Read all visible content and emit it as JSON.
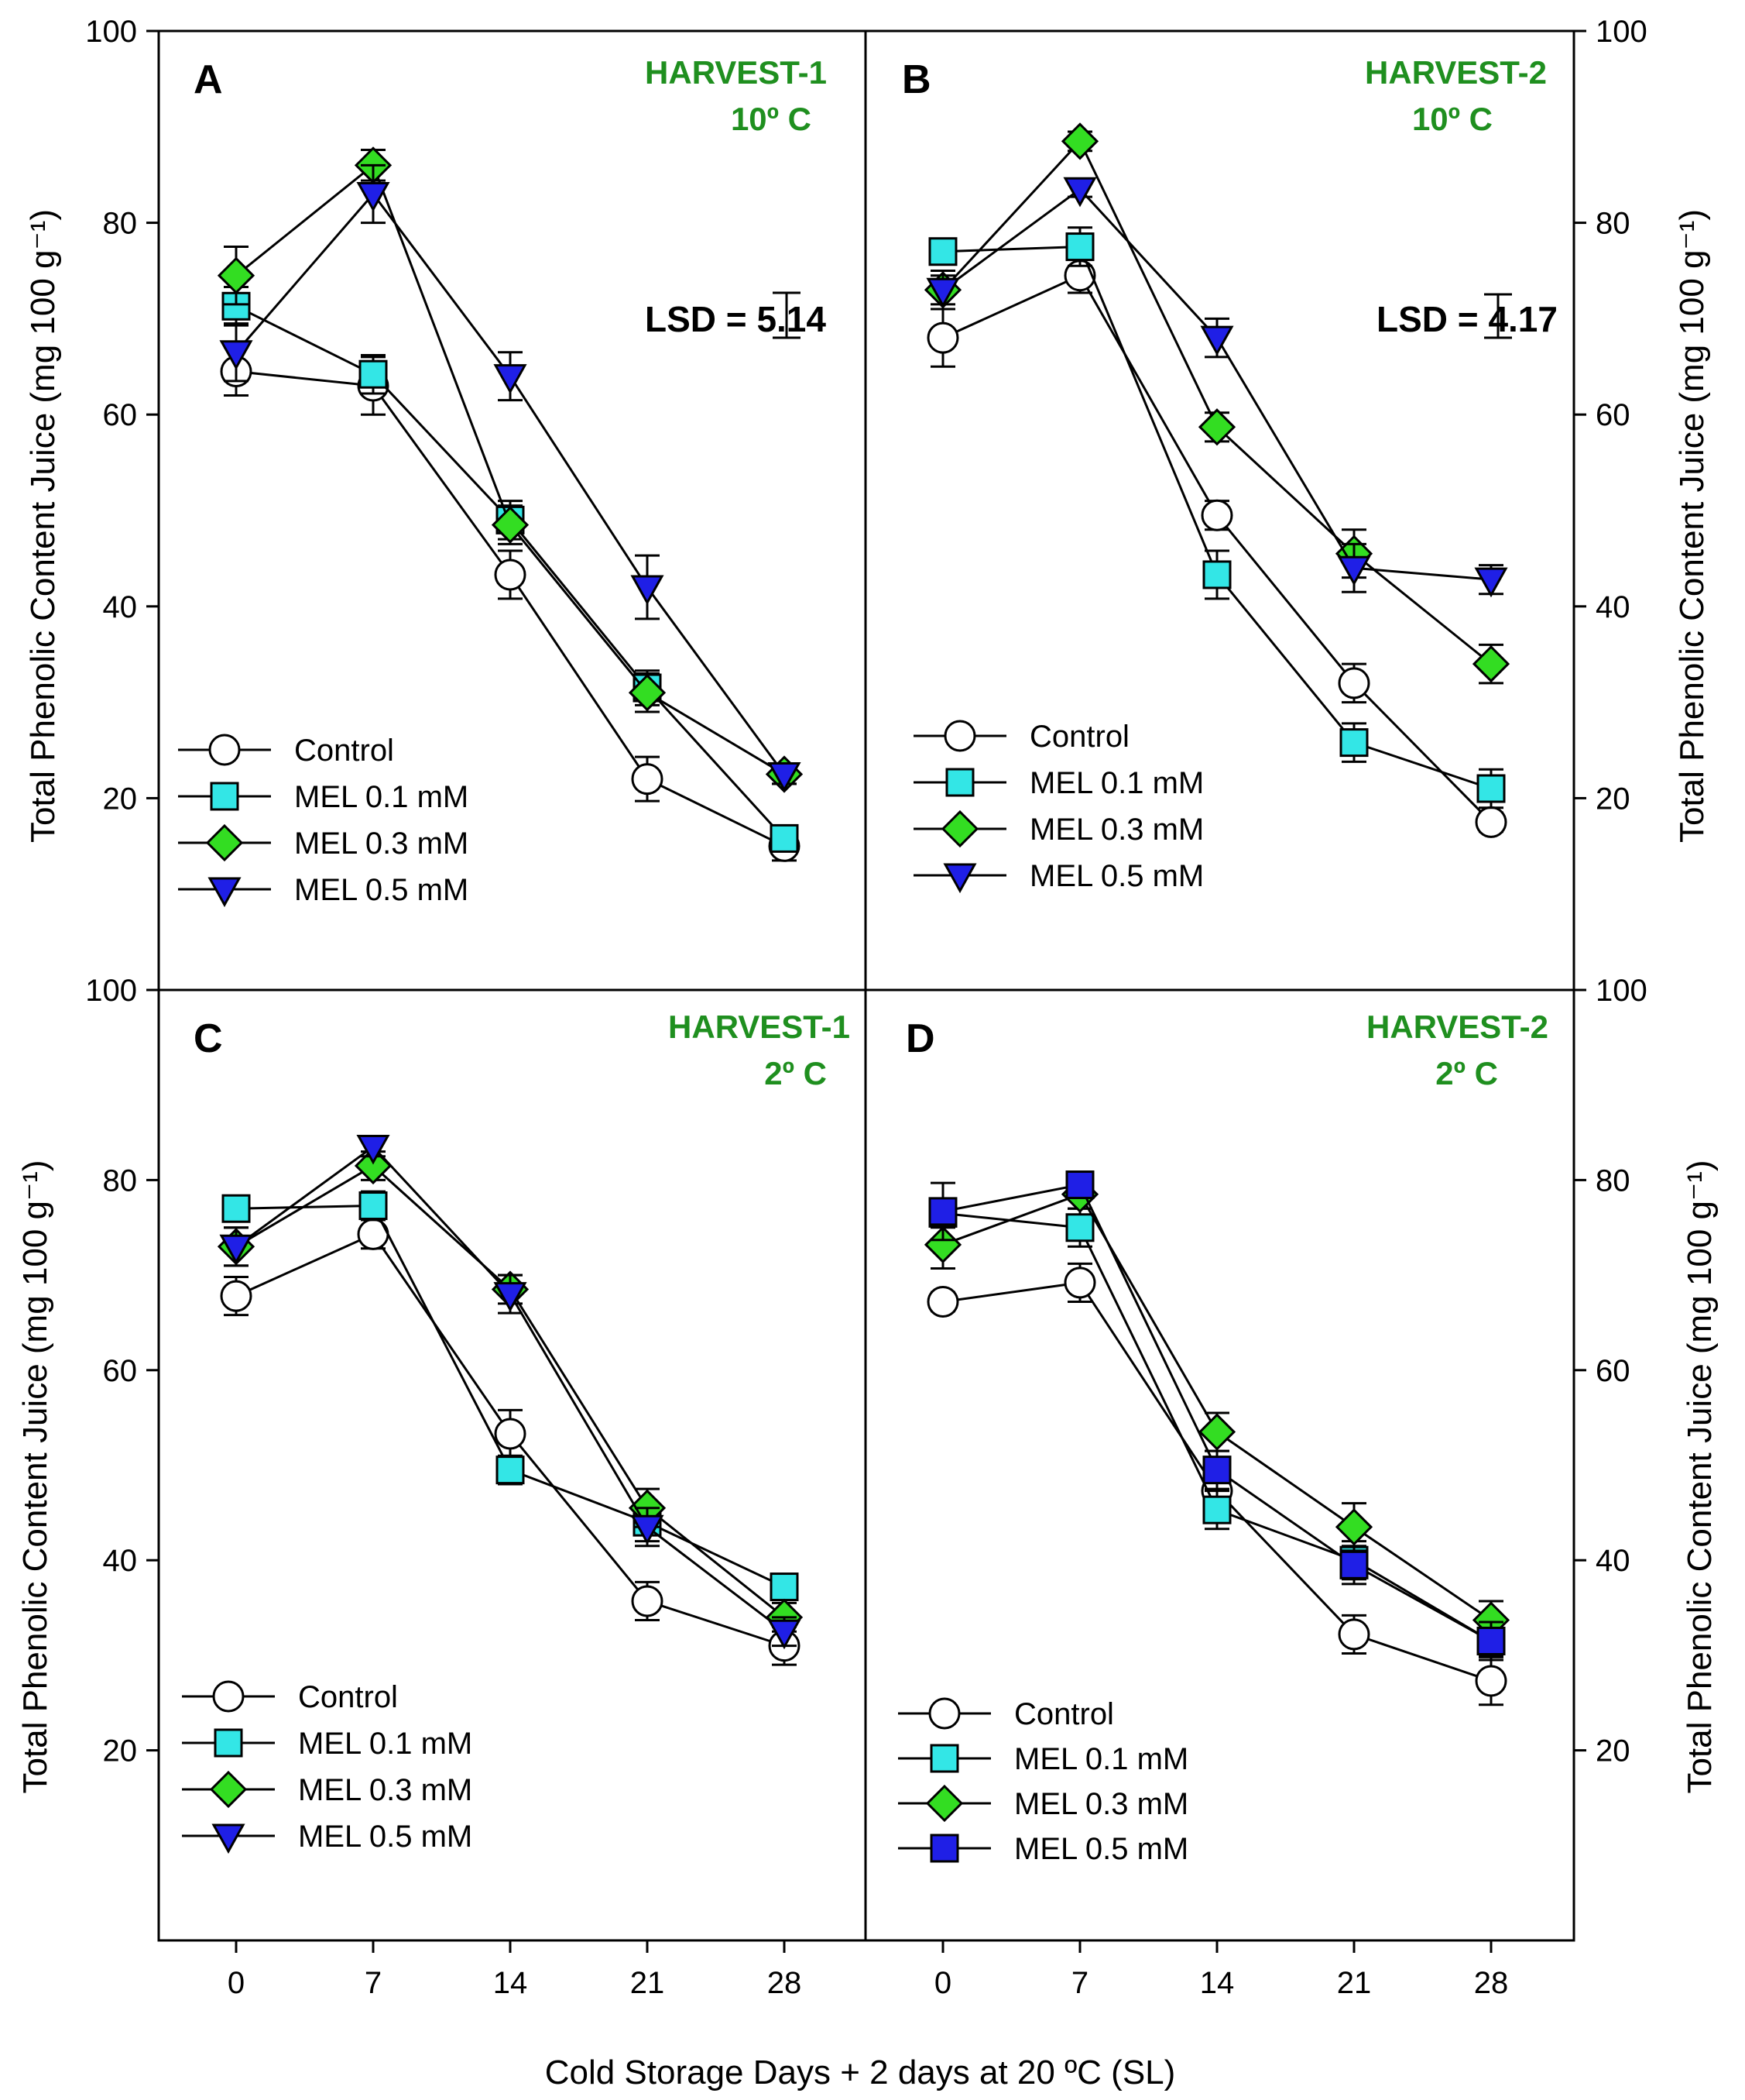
{
  "figure": {
    "xlabel": "Cold Storage Days + 2 days at 20 ºC (SL)",
    "ylabel": "Total Phenolic Content Juice (mg 100 g⁻¹)",
    "x_ticks": [
      0,
      7,
      14,
      21,
      28
    ],
    "y_ticks_top": [
      20,
      40,
      60,
      80,
      100
    ],
    "y_ticks_bottom": [
      20,
      40,
      60,
      80,
      100
    ],
    "ylim": [
      0,
      100
    ]
  },
  "styles": {
    "Control": {
      "marker": "circle",
      "fill": "#ffffff"
    },
    "MEL 0.1 mM": {
      "marker": "square",
      "fill": "#33e6e6"
    },
    "MEL 0.3 mM": {
      "marker": "diamond",
      "fill": "#33dd22"
    },
    "MEL 0.5 mM": {
      "marker": "triangle-down",
      "fill": "#1f1fe6"
    },
    "MEL 0.5 mM (D)": {
      "marker": "square",
      "fill": "#1f1fe6"
    },
    "harvest_color": "#1f8f1f"
  },
  "chart_data": [
    {
      "type": "line",
      "panel": "A",
      "title": "HARVEST-1",
      "subtitle": "10º C",
      "lsd": "LSD = 5.14",
      "x": [
        0,
        7,
        14,
        21,
        28
      ],
      "legend_labels": [
        "Control",
        "MEL 0.1 mM",
        "MEL 0.3 mM",
        "MEL 0.5 mM"
      ],
      "series": [
        {
          "name": "Control",
          "style": "Control",
          "values": [
            64.5,
            63.0,
            43.3,
            22.0,
            15.0
          ],
          "errors": [
            2.5,
            3.0,
            2.5,
            2.3,
            1.5
          ]
        },
        {
          "name": "MEL 0.1 mM",
          "style": "MEL 0.1 mM",
          "values": [
            71.3,
            64.2,
            49.0,
            31.5,
            15.8
          ],
          "errors": [
            2.0,
            2.0,
            2.0,
            1.8,
            1.0
          ]
        },
        {
          "name": "MEL 0.3 mM",
          "style": "MEL 0.3 mM",
          "values": [
            74.5,
            86.0,
            48.5,
            31.0,
            22.5
          ],
          "errors": [
            3.0,
            1.6,
            2.0,
            2.0,
            1.0
          ]
        },
        {
          "name": "MEL 0.5 mM",
          "style": "MEL 0.5 mM",
          "values": [
            66.5,
            83.0,
            64.0,
            42.0,
            22.5
          ],
          "errors": [
            3.0,
            3.0,
            2.5,
            3.3,
            1.0
          ]
        }
      ]
    },
    {
      "type": "line",
      "panel": "B",
      "title": "HARVEST-2",
      "subtitle": "10º C",
      "lsd": "LSD = 4.17",
      "x": [
        0,
        7,
        14,
        21,
        28
      ],
      "legend_labels": [
        "Control",
        "MEL 0.1 mM",
        "MEL 0.3 mM",
        "MEL 0.5 mM"
      ],
      "series": [
        {
          "name": "Control",
          "style": "Control",
          "values": [
            68.0,
            74.5,
            49.5,
            32.0,
            17.5
          ],
          "errors": [
            3.0,
            1.8,
            1.5,
            2.0,
            1.0
          ]
        },
        {
          "name": "MEL 0.1 mM",
          "style": "MEL 0.1 mM",
          "values": [
            77.0,
            77.5,
            43.3,
            25.8,
            21.0
          ],
          "errors": [
            1.0,
            2.0,
            2.5,
            2.0,
            2.0
          ]
        },
        {
          "name": "MEL 0.3 mM",
          "style": "MEL 0.3 mM",
          "values": [
            73.0,
            88.5,
            58.7,
            45.5,
            34.0
          ],
          "errors": [
            1.5,
            1.0,
            1.5,
            2.5,
            2.0
          ]
        },
        {
          "name": "MEL 0.5 mM",
          "style": "MEL 0.5 mM",
          "values": [
            73.0,
            83.5,
            68.0,
            44.0,
            42.8
          ],
          "errors": [
            2.0,
            0.8,
            2.0,
            2.5,
            1.5
          ]
        }
      ]
    },
    {
      "type": "line",
      "panel": "C",
      "title": "HARVEST-1",
      "subtitle": "2º C",
      "x": [
        0,
        7,
        14,
        21,
        28
      ],
      "legend_labels": [
        "Control",
        "MEL 0.1 mM",
        "MEL 0.3 mM",
        "MEL 0.5 mM"
      ],
      "series": [
        {
          "name": "Control",
          "style": "Control",
          "values": [
            67.8,
            74.3,
            53.3,
            35.7,
            31.0
          ],
          "errors": [
            2.0,
            1.5,
            2.5,
            2.0,
            2.0
          ]
        },
        {
          "name": "MEL 0.1 mM",
          "style": "MEL 0.1 mM",
          "values": [
            77.0,
            77.3,
            49.5,
            44.0,
            37.2
          ],
          "errors": [
            1.0,
            1.5,
            1.5,
            2.0,
            1.0
          ]
        },
        {
          "name": "MEL 0.3 mM",
          "style": "MEL 0.3 mM",
          "values": [
            73.0,
            81.5,
            68.5,
            45.5,
            34.0
          ],
          "errors": [
            2.0,
            1.5,
            1.5,
            2.0,
            1.5
          ]
        },
        {
          "name": "MEL 0.5 mM",
          "style": "MEL 0.5 mM",
          "values": [
            73.0,
            83.5,
            68.0,
            43.5,
            32.5
          ],
          "errors": [
            2.0,
            1.0,
            2.0,
            2.0,
            1.5
          ]
        }
      ]
    },
    {
      "type": "line",
      "panel": "D",
      "title": "HARVEST-2",
      "subtitle": "2º C",
      "x": [
        0,
        7,
        14,
        21,
        28
      ],
      "legend_labels": [
        "Control",
        "MEL 0.1 mM",
        "MEL 0.3 mM",
        "MEL 0.5 mM"
      ],
      "series": [
        {
          "name": "Control",
          "style": "Control",
          "values": [
            67.2,
            69.2,
            47.3,
            32.2,
            27.3
          ],
          "errors": [
            1.0,
            2.0,
            2.0,
            2.0,
            2.5
          ]
        },
        {
          "name": "MEL 0.1 mM",
          "style": "MEL 0.1 mM",
          "values": [
            76.5,
            75.0,
            45.3,
            40.0,
            31.5
          ],
          "errors": [
            1.5,
            2.0,
            2.0,
            2.0,
            1.5
          ]
        },
        {
          "name": "MEL 0.3 mM",
          "style": "MEL 0.3 mM",
          "values": [
            73.2,
            78.5,
            53.5,
            43.5,
            33.7
          ],
          "errors": [
            2.5,
            1.5,
            2.0,
            2.5,
            2.0
          ]
        },
        {
          "name": "MEL 0.5 mM",
          "style": "MEL 0.5 mM (D)",
          "values": [
            76.7,
            79.5,
            49.5,
            39.5,
            31.5
          ],
          "errors": [
            3.0,
            1.0,
            2.0,
            2.0,
            2.0
          ]
        }
      ]
    }
  ]
}
